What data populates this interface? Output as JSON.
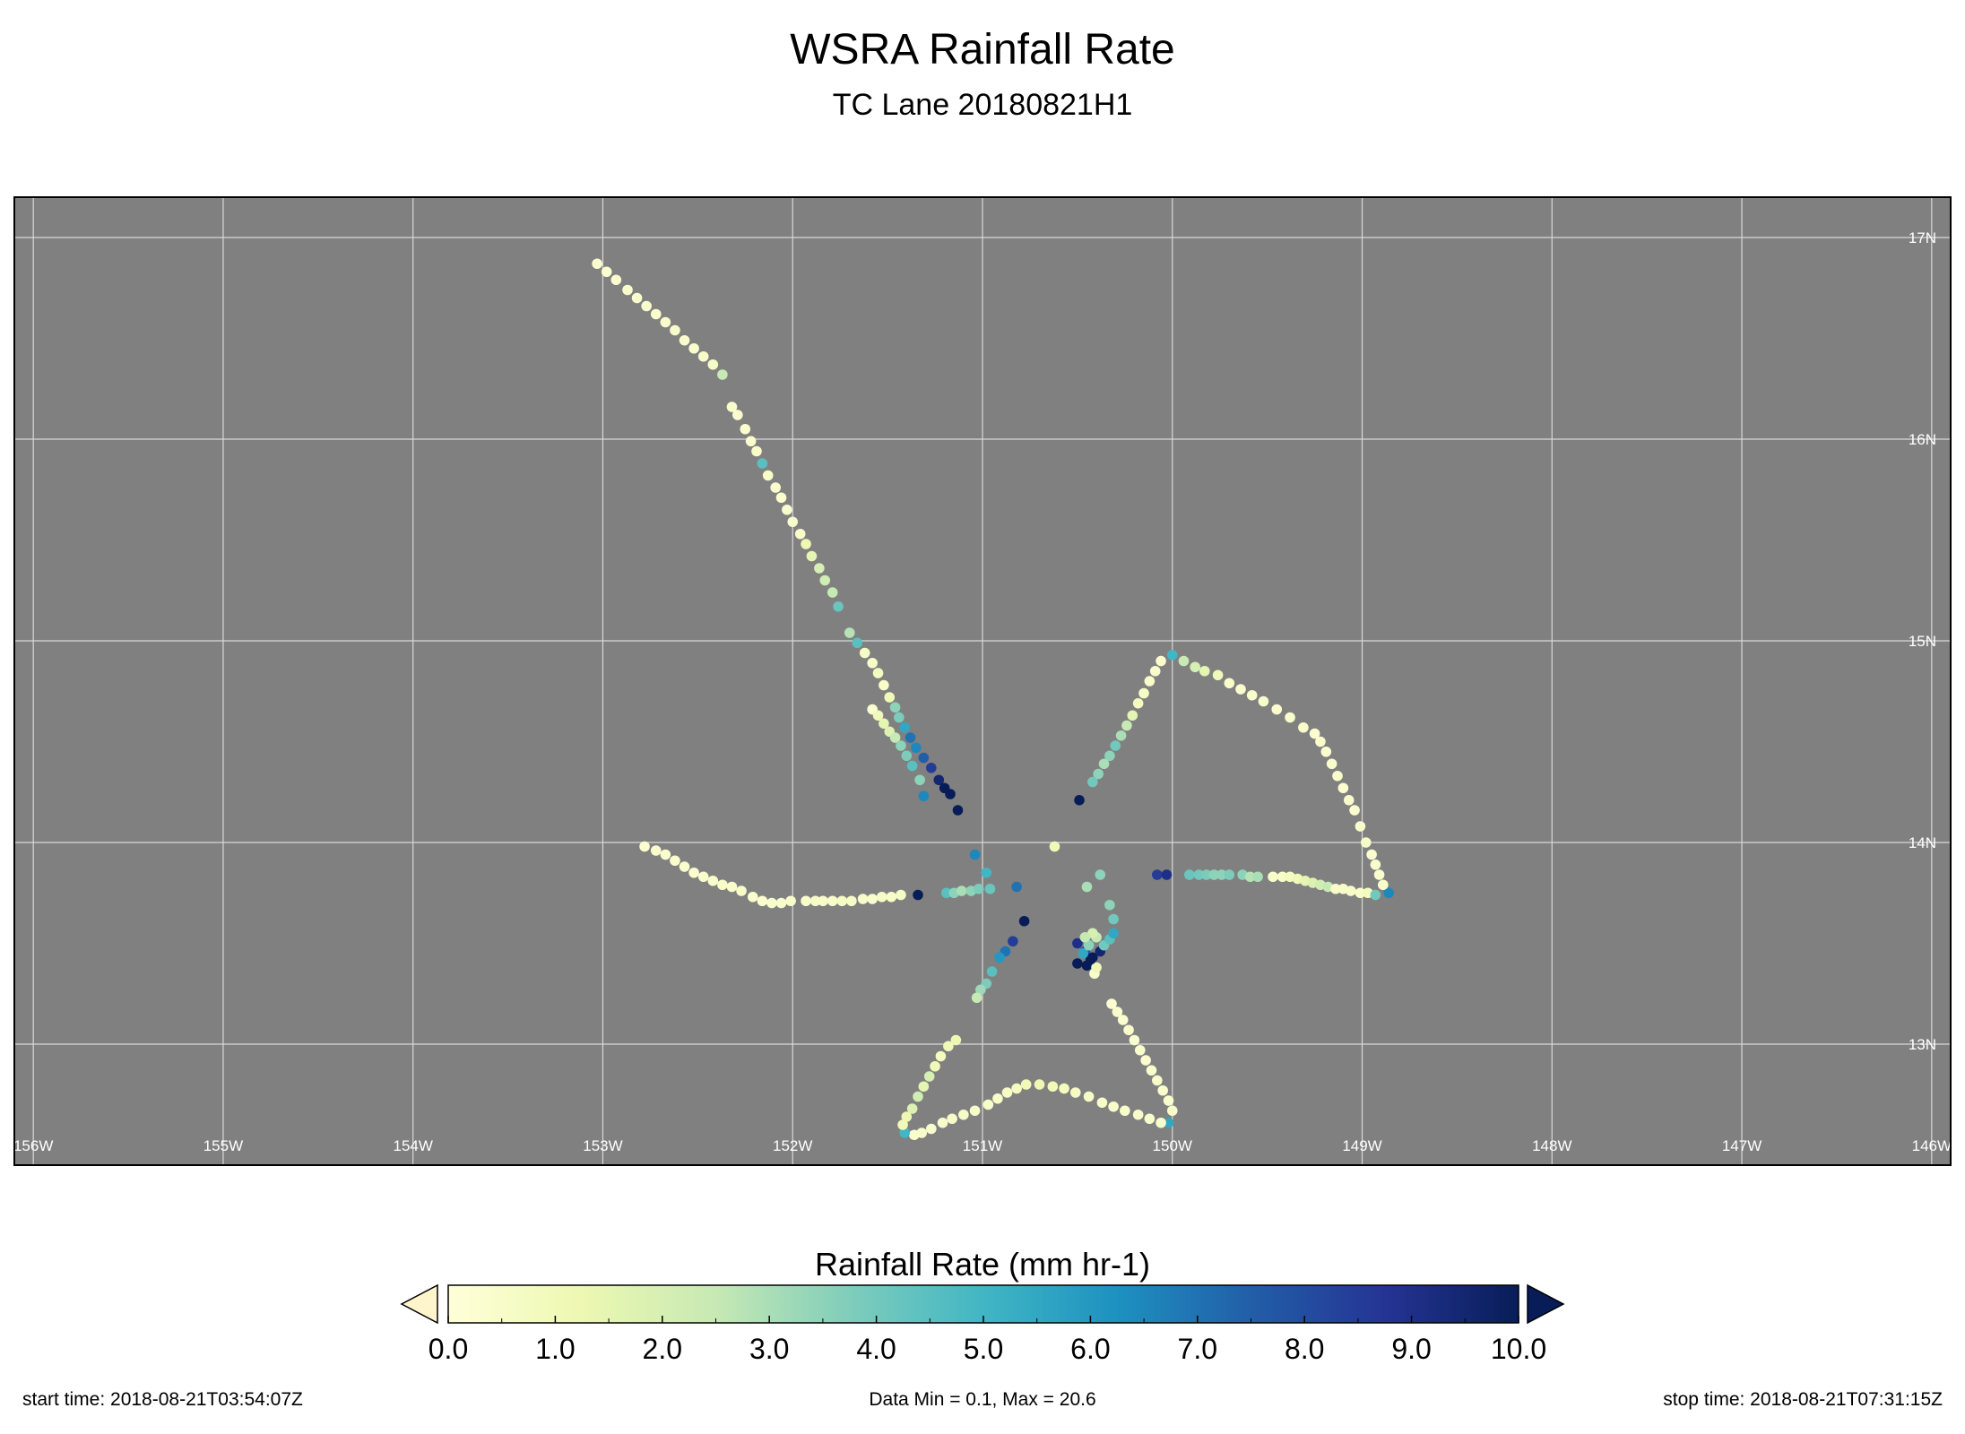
{
  "title": "WSRA Rainfall Rate",
  "subtitle": "TC Lane 20180821H1",
  "map": {
    "background": "#808080",
    "grid_color": "#d8d8d8",
    "lon_range": [
      -156.1,
      -145.9
    ],
    "lat_range": [
      12.4,
      17.2
    ],
    "lon_ticks": [
      {
        "value": -156,
        "label": "156W"
      },
      {
        "value": -155,
        "label": "155W"
      },
      {
        "value": -154,
        "label": "154W"
      },
      {
        "value": -153,
        "label": "153W"
      },
      {
        "value": -152,
        "label": "152W"
      },
      {
        "value": -151,
        "label": "151W"
      },
      {
        "value": -150,
        "label": "150W"
      },
      {
        "value": -149,
        "label": "149W"
      },
      {
        "value": -148,
        "label": "148W"
      },
      {
        "value": -147,
        "label": "147W"
      },
      {
        "value": -146,
        "label": "146W"
      }
    ],
    "lat_ticks": [
      {
        "value": 17,
        "label": "17N"
      },
      {
        "value": 16,
        "label": "16N"
      },
      {
        "value": 15,
        "label": "15N"
      },
      {
        "value": 14,
        "label": "14N"
      },
      {
        "value": 13,
        "label": "13N"
      }
    ]
  },
  "chart_data": {
    "type": "scatter",
    "x_field": "longitude",
    "y_field": "latitude",
    "color_field": "rainfall_rate",
    "points": [
      [
        -153.03,
        16.87,
        0.3
      ],
      [
        -152.98,
        16.83,
        0.3
      ],
      [
        -152.93,
        16.79,
        0.3
      ],
      [
        -152.87,
        16.74,
        0.4
      ],
      [
        -152.82,
        16.7,
        0.4
      ],
      [
        -152.77,
        16.66,
        0.4
      ],
      [
        -152.72,
        16.62,
        0.3
      ],
      [
        -152.67,
        16.58,
        0.4
      ],
      [
        -152.62,
        16.54,
        0.5
      ],
      [
        -152.57,
        16.49,
        0.4
      ],
      [
        -152.52,
        16.45,
        0.4
      ],
      [
        -152.47,
        16.41,
        0.5
      ],
      [
        -152.42,
        16.37,
        0.6
      ],
      [
        -152.37,
        16.32,
        2.5
      ],
      [
        -152.32,
        16.16,
        0.4
      ],
      [
        -152.29,
        16.12,
        0.3
      ],
      [
        -152.25,
        16.05,
        0.3
      ],
      [
        -152.22,
        15.99,
        0.4
      ],
      [
        -152.19,
        15.94,
        0.5
      ],
      [
        -152.16,
        15.88,
        4.5
      ],
      [
        -152.13,
        15.82,
        0.5
      ],
      [
        -152.09,
        15.76,
        0.4
      ],
      [
        -152.06,
        15.71,
        0.3
      ],
      [
        -152.03,
        15.65,
        0.4
      ],
      [
        -152.0,
        15.59,
        0.4
      ],
      [
        -151.96,
        15.53,
        0.5
      ],
      [
        -151.93,
        15.48,
        1.2
      ],
      [
        -151.9,
        15.42,
        1.5
      ],
      [
        -151.86,
        15.36,
        2.0
      ],
      [
        -151.83,
        15.3,
        2.2
      ],
      [
        -151.79,
        15.24,
        2.5
      ],
      [
        -151.76,
        15.17,
        4.2
      ],
      [
        -151.7,
        15.04,
        2.8
      ],
      [
        -151.66,
        14.99,
        4.5
      ],
      [
        -151.62,
        14.94,
        0.6
      ],
      [
        -151.58,
        14.89,
        0.5
      ],
      [
        -151.55,
        14.84,
        0.8
      ],
      [
        -151.52,
        14.78,
        0.5
      ],
      [
        -151.49,
        14.72,
        1.0
      ],
      [
        -151.46,
        14.67,
        3.5
      ],
      [
        -151.44,
        14.62,
        3.8
      ],
      [
        -151.41,
        14.57,
        5.5
      ],
      [
        -151.38,
        14.52,
        7.0
      ],
      [
        -151.35,
        14.47,
        6.5
      ],
      [
        -151.31,
        14.42,
        7.5
      ],
      [
        -151.27,
        14.37,
        8.5
      ],
      [
        -151.23,
        14.31,
        9.5
      ],
      [
        -151.2,
        14.27,
        10.5
      ],
      [
        -151.17,
        14.24,
        10.5
      ],
      [
        -151.13,
        14.16,
        10.8
      ],
      [
        -151.58,
        14.66,
        0.3
      ],
      [
        -151.55,
        14.63,
        1.0
      ],
      [
        -151.52,
        14.59,
        1.5
      ],
      [
        -151.49,
        14.55,
        1.8
      ],
      [
        -151.46,
        14.52,
        2.5
      ],
      [
        -151.43,
        14.48,
        3.5
      ],
      [
        -151.4,
        14.43,
        3.8
      ],
      [
        -151.37,
        14.38,
        4.5
      ],
      [
        -151.33,
        14.31,
        3.5
      ],
      [
        -151.31,
        14.23,
        6.5
      ],
      [
        -152.78,
        13.98,
        0.3
      ],
      [
        -152.72,
        13.96,
        0.4
      ],
      [
        -152.67,
        13.94,
        0.3
      ],
      [
        -152.62,
        13.91,
        0.3
      ],
      [
        -152.57,
        13.88,
        0.4
      ],
      [
        -152.52,
        13.85,
        0.3
      ],
      [
        -152.47,
        13.83,
        0.4
      ],
      [
        -152.42,
        13.81,
        0.4
      ],
      [
        -152.37,
        13.79,
        0.5
      ],
      [
        -152.32,
        13.78,
        0.4
      ],
      [
        -152.27,
        13.76,
        0.5
      ],
      [
        -152.21,
        13.73,
        0.4
      ],
      [
        -152.16,
        13.71,
        0.3
      ],
      [
        -152.11,
        13.7,
        0.4
      ],
      [
        -152.06,
        13.7,
        0.4
      ],
      [
        -152.01,
        13.71,
        0.5
      ],
      [
        -151.93,
        13.71,
        0.4
      ],
      [
        -151.88,
        13.71,
        0.6
      ],
      [
        -151.84,
        13.71,
        0.5
      ],
      [
        -151.79,
        13.71,
        0.5
      ],
      [
        -151.74,
        13.71,
        0.7
      ],
      [
        -151.69,
        13.71,
        0.6
      ],
      [
        -151.63,
        13.72,
        0.5
      ],
      [
        -151.58,
        13.72,
        0.4
      ],
      [
        -151.53,
        13.73,
        0.6
      ],
      [
        -151.48,
        13.73,
        0.5
      ],
      [
        -151.43,
        13.74,
        0.6
      ],
      [
        -151.34,
        13.74,
        10.0
      ],
      [
        -151.19,
        13.75,
        4.5
      ],
      [
        -151.15,
        13.75,
        3.5
      ],
      [
        -151.11,
        13.76,
        3.0
      ],
      [
        -151.06,
        13.76,
        3.5
      ],
      [
        -151.02,
        13.77,
        3.8
      ],
      [
        -150.96,
        13.77,
        4.2
      ],
      [
        -151.04,
        13.94,
        6.5
      ],
      [
        -150.98,
        13.85,
        5.0
      ],
      [
        -150.82,
        13.78,
        7.0
      ],
      [
        -150.78,
        13.61,
        10.2
      ],
      [
        -150.84,
        13.51,
        8.5
      ],
      [
        -150.88,
        13.46,
        7.0
      ],
      [
        -150.91,
        13.43,
        6.0
      ],
      [
        -150.95,
        13.36,
        4.5
      ],
      [
        -150.98,
        13.3,
        3.8
      ],
      [
        -151.01,
        13.27,
        3.2
      ],
      [
        -151.03,
        13.23,
        2.5
      ],
      [
        -150.62,
        13.98,
        1.0
      ],
      [
        -150.49,
        14.21,
        10.5
      ],
      [
        -150.5,
        13.5,
        9.0
      ],
      [
        -150.46,
        13.46,
        8.0
      ],
      [
        -150.42,
        13.43,
        10.5
      ],
      [
        -150.38,
        13.46,
        9.5
      ],
      [
        -150.45,
        13.39,
        10.8
      ],
      [
        -150.5,
        13.4,
        11.0
      ],
      [
        -150.41,
        13.35,
        0.4
      ],
      [
        -150.4,
        13.38,
        1.0
      ],
      [
        -150.43,
        13.42,
        20.6
      ],
      [
        -150.47,
        13.45,
        5.5
      ],
      [
        -150.44,
        13.49,
        3.5
      ],
      [
        -150.4,
        13.53,
        2.5
      ],
      [
        -150.36,
        13.49,
        4.0
      ],
      [
        -150.33,
        13.52,
        4.5
      ],
      [
        -150.31,
        13.55,
        5.5
      ],
      [
        -150.31,
        13.62,
        4.0
      ],
      [
        -150.33,
        13.69,
        3.5
      ],
      [
        -150.38,
        13.84,
        3.5
      ],
      [
        -150.45,
        13.78,
        3.0
      ],
      [
        -150.42,
        13.55,
        2.0
      ],
      [
        -150.46,
        13.53,
        2.5
      ],
      [
        -150.08,
        13.84,
        8.5
      ],
      [
        -150.03,
        13.84,
        9.0
      ],
      [
        -149.91,
        13.84,
        4.2
      ],
      [
        -149.86,
        13.84,
        4.0
      ],
      [
        -149.82,
        13.84,
        3.8
      ],
      [
        -149.78,
        13.84,
        3.5
      ],
      [
        -149.74,
        13.84,
        3.5
      ],
      [
        -149.7,
        13.84,
        3.8
      ],
      [
        -149.63,
        13.84,
        3.5
      ],
      [
        -149.59,
        13.83,
        2.8
      ],
      [
        -149.55,
        13.83,
        3.0
      ],
      [
        -149.47,
        13.83,
        0.5
      ],
      [
        -149.42,
        13.83,
        0.5
      ],
      [
        -149.38,
        13.83,
        0.8
      ],
      [
        -149.34,
        13.82,
        1.0
      ],
      [
        -149.3,
        13.81,
        1.5
      ],
      [
        -149.26,
        13.8,
        1.8
      ],
      [
        -149.22,
        13.79,
        2.2
      ],
      [
        -149.18,
        13.78,
        2.5
      ],
      [
        -149.14,
        13.77,
        0.5
      ],
      [
        -149.1,
        13.77,
        0.5
      ],
      [
        -149.06,
        13.76,
        0.5
      ],
      [
        -149.01,
        13.75,
        0.5
      ],
      [
        -148.97,
        13.75,
        0.8
      ],
      [
        -148.93,
        13.74,
        4.0
      ],
      [
        -148.86,
        13.75,
        6.5
      ],
      [
        -148.89,
        13.79,
        0.4
      ],
      [
        -148.91,
        13.84,
        0.3
      ],
      [
        -148.93,
        13.89,
        0.4
      ],
      [
        -148.95,
        13.94,
        0.3
      ],
      [
        -148.98,
        14.0,
        0.5
      ],
      [
        -149.01,
        14.08,
        0.4
      ],
      [
        -149.04,
        14.16,
        0.3
      ],
      [
        -149.07,
        14.21,
        0.4
      ],
      [
        -149.1,
        14.27,
        0.3
      ],
      [
        -149.13,
        14.33,
        0.5
      ],
      [
        -149.16,
        14.39,
        0.4
      ],
      [
        -149.19,
        14.45,
        0.3
      ],
      [
        -149.22,
        14.5,
        0.4
      ],
      [
        -149.25,
        14.54,
        0.3
      ],
      [
        -149.31,
        14.57,
        0.5
      ],
      [
        -149.38,
        14.62,
        0.4
      ],
      [
        -149.45,
        14.66,
        0.3
      ],
      [
        -149.52,
        14.7,
        0.5
      ],
      [
        -149.58,
        14.73,
        0.4
      ],
      [
        -149.64,
        14.76,
        0.4
      ],
      [
        -149.7,
        14.79,
        0.5
      ],
      [
        -149.76,
        14.83,
        1.0
      ],
      [
        -149.83,
        14.85,
        1.5
      ],
      [
        -149.88,
        14.87,
        2.0
      ],
      [
        -149.94,
        14.9,
        2.5
      ],
      [
        -150.0,
        14.93,
        5.0
      ],
      [
        -150.06,
        14.9,
        0.3
      ],
      [
        -150.09,
        14.85,
        0.4
      ],
      [
        -150.12,
        14.8,
        0.5
      ],
      [
        -150.15,
        14.74,
        0.6
      ],
      [
        -150.18,
        14.69,
        0.8
      ],
      [
        -150.21,
        14.63,
        1.5
      ],
      [
        -150.24,
        14.58,
        2.5
      ],
      [
        -150.27,
        14.53,
        3.0
      ],
      [
        -150.3,
        14.48,
        4.0
      ],
      [
        -150.33,
        14.43,
        3.5
      ],
      [
        -150.36,
        14.39,
        3.0
      ],
      [
        -150.39,
        14.34,
        3.5
      ],
      [
        -150.42,
        14.3,
        4.0
      ],
      [
        -150.32,
        13.2,
        0.3
      ],
      [
        -150.29,
        13.16,
        0.4
      ],
      [
        -150.26,
        13.12,
        0.3
      ],
      [
        -150.23,
        13.07,
        0.4
      ],
      [
        -150.2,
        13.02,
        0.3
      ],
      [
        -150.17,
        12.97,
        0.4
      ],
      [
        -150.14,
        12.92,
        0.3
      ],
      [
        -150.11,
        12.87,
        0.4
      ],
      [
        -150.08,
        12.82,
        0.5
      ],
      [
        -150.05,
        12.77,
        0.4
      ],
      [
        -150.02,
        12.72,
        0.4
      ],
      [
        -150.0,
        12.67,
        0.5
      ],
      [
        -150.02,
        12.61,
        5.5
      ],
      [
        -150.06,
        12.61,
        0.4
      ],
      [
        -150.12,
        12.63,
        0.4
      ],
      [
        -150.18,
        12.65,
        0.5
      ],
      [
        -150.25,
        12.67,
        0.4
      ],
      [
        -150.31,
        12.69,
        0.4
      ],
      [
        -150.37,
        12.71,
        0.5
      ],
      [
        -150.44,
        12.74,
        0.6
      ],
      [
        -150.51,
        12.76,
        0.7
      ],
      [
        -150.57,
        12.78,
        0.8
      ],
      [
        -150.63,
        12.79,
        1.0
      ],
      [
        -150.7,
        12.8,
        1.2
      ],
      [
        -150.77,
        12.8,
        1.0
      ],
      [
        -150.82,
        12.78,
        0.8
      ],
      [
        -150.87,
        12.76,
        0.6
      ],
      [
        -150.92,
        12.73,
        0.5
      ],
      [
        -150.97,
        12.7,
        0.6
      ],
      [
        -151.04,
        12.67,
        0.5
      ],
      [
        -151.1,
        12.65,
        0.6
      ],
      [
        -151.16,
        12.63,
        0.5
      ],
      [
        -151.21,
        12.61,
        0.4
      ],
      [
        -151.27,
        12.58,
        0.4
      ],
      [
        -151.32,
        12.56,
        0.5
      ],
      [
        -151.36,
        12.55,
        0.4
      ],
      [
        -151.41,
        12.56,
        5.0
      ],
      [
        -151.42,
        12.6,
        1.0
      ],
      [
        -151.4,
        12.64,
        1.2
      ],
      [
        -151.37,
        12.68,
        1.8
      ],
      [
        -151.34,
        12.74,
        2.2
      ],
      [
        -151.31,
        12.79,
        1.5
      ],
      [
        -151.28,
        12.84,
        2.0
      ],
      [
        -151.25,
        12.89,
        1.0
      ],
      [
        -151.22,
        12.94,
        0.8
      ],
      [
        -151.18,
        12.99,
        1.0
      ],
      [
        -151.14,
        13.02,
        1.2
      ]
    ]
  },
  "colorbar": {
    "label": "Rainfall Rate (mm hr-1)",
    "min": 0.0,
    "max": 10.0,
    "tick_labels": [
      "0.0",
      "1.0",
      "2.0",
      "3.0",
      "4.0",
      "5.0",
      "6.0",
      "7.0",
      "8.0",
      "9.0",
      "10.0"
    ],
    "colormap": "YlGnBu",
    "colors": [
      "#ffffd9",
      "#edf8b1",
      "#c7e9b4",
      "#7fcdbb",
      "#41b6c4",
      "#1d91c0",
      "#225ea8",
      "#253494",
      "#081d58"
    ],
    "under_color": "#ffffd9",
    "over_color": "#081d58"
  },
  "footer": {
    "start_time": "start time: 2018-08-21T03:54:07Z",
    "data_minmax": "Data Min = 0.1, Max = 20.6",
    "stop_time": "stop time: 2018-08-21T07:31:15Z"
  }
}
